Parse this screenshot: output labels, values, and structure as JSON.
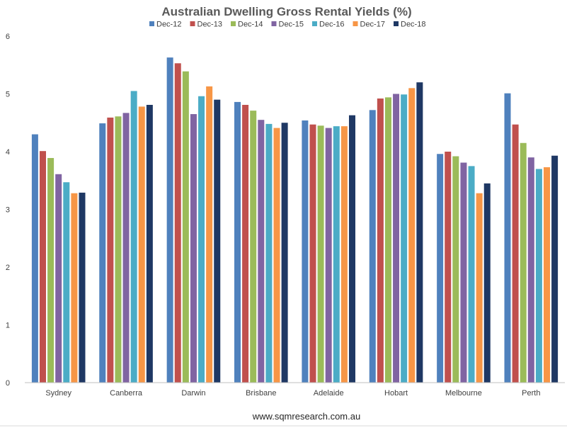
{
  "chart_data": {
    "type": "bar",
    "title": "Australian Dwelling Gross Rental Yields (%)",
    "xlabel": "",
    "ylabel": "",
    "ylim": [
      0,
      6
    ],
    "yticks": [
      "0",
      "1",
      "2",
      "3",
      "4",
      "5",
      "6"
    ],
    "grid": false,
    "legend_position": "top",
    "categories": [
      "Sydney",
      "Canberra",
      "Darwin",
      "Brisbane",
      "Adelaide",
      "Hobart",
      "Melbourne",
      "Perth"
    ],
    "series": [
      {
        "name": "Dec-12",
        "color": "#4F81BD",
        "values": [
          4.3,
          4.49,
          5.63,
          4.86,
          4.54,
          4.72,
          3.96,
          5.01
        ]
      },
      {
        "name": "Dec-13",
        "color": "#C0504D",
        "values": [
          4.01,
          4.59,
          5.53,
          4.81,
          4.47,
          4.92,
          4.0,
          4.47
        ]
      },
      {
        "name": "Dec-14",
        "color": "#9BBB59",
        "values": [
          3.89,
          4.61,
          5.39,
          4.71,
          4.45,
          4.94,
          3.92,
          4.15
        ]
      },
      {
        "name": "Dec-15",
        "color": "#8064A2",
        "values": [
          3.61,
          4.67,
          4.65,
          4.55,
          4.41,
          5.0,
          3.81,
          3.9
        ]
      },
      {
        "name": "Dec-16",
        "color": "#4BACC6",
        "values": [
          3.47,
          5.05,
          4.96,
          4.48,
          4.44,
          4.99,
          3.75,
          3.7
        ]
      },
      {
        "name": "Dec-17",
        "color": "#F79646",
        "values": [
          3.28,
          4.78,
          5.13,
          4.41,
          4.44,
          5.1,
          3.28,
          3.73
        ]
      },
      {
        "name": "Dec-18",
        "color": "#1F3864",
        "values": [
          3.29,
          4.81,
          4.9,
          4.5,
          4.63,
          5.2,
          3.45,
          3.93
        ]
      }
    ]
  },
  "source": "www.sqmresearch.com.au"
}
